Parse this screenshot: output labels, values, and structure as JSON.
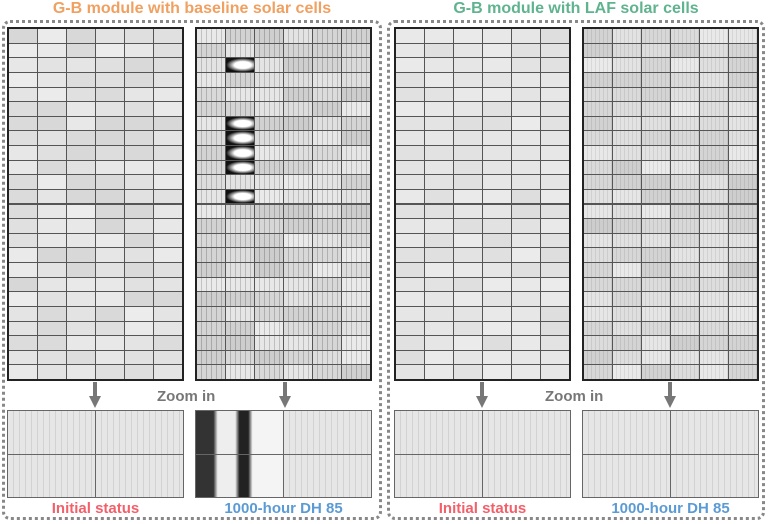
{
  "left_group": {
    "title": "G-B module with baseline solar cells",
    "title_color": "#f0a060",
    "zoom_label": "Zoom in",
    "captions": [
      "Initial status",
      "1000-hour DH 85"
    ]
  },
  "right_group": {
    "title": "G-B module with LAF solar cells",
    "title_color": "#5fb38e",
    "zoom_label": "Zoom in",
    "captions": [
      "Initial status",
      "1000-hour DH 85"
    ]
  },
  "caption_colors": {
    "initial": "#f2606a",
    "dh85": "#5b9bd5"
  },
  "module_grid": {
    "columns": 6,
    "rows": 24
  }
}
